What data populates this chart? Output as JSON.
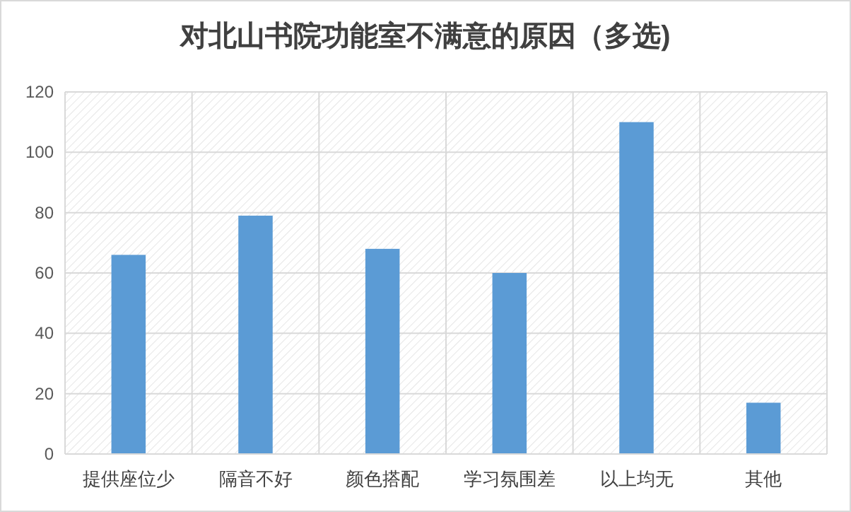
{
  "chart_data": {
    "type": "bar",
    "title": "对北山书院功能室不满意的原因（多选)",
    "categories": [
      "提供座位少",
      "隔音不好",
      "颜色搭配",
      "学习氛围差",
      "以上均无",
      "其他"
    ],
    "values": [
      66,
      79,
      68,
      60,
      110,
      17
    ],
    "color": "#5b9bd5",
    "ylim": [
      0,
      120
    ],
    "yticks": [
      0,
      20,
      40,
      60,
      80,
      100,
      120
    ],
    "grid": true
  }
}
